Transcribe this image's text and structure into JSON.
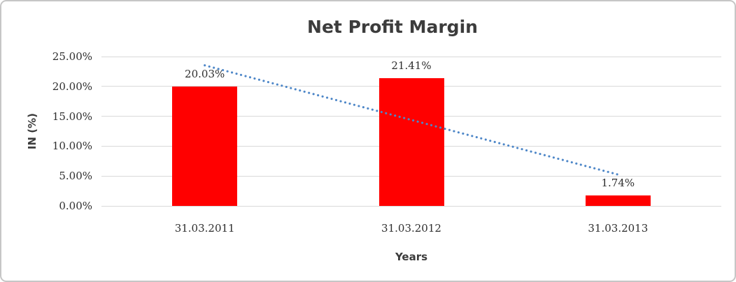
{
  "window": {
    "background_color": "#FFFFFF",
    "border_color": "#C6C6C6"
  },
  "chart_data": {
    "type": "bar",
    "title": "Net Profit Margin",
    "xlabel": "Years",
    "ylabel": "IN (%)",
    "categories": [
      "31.03.2011",
      "31.03.2012",
      "31.03.2013"
    ],
    "series": [
      {
        "name": "Net Profit Margin",
        "values": [
          20.03,
          21.41,
          1.74
        ],
        "data_labels": [
          "20.03%",
          "21.41%",
          "1.74%"
        ],
        "color": "#FF0000"
      }
    ],
    "yticks": [
      {
        "value": 0,
        "label": "0.00%"
      },
      {
        "value": 5,
        "label": "5.00%"
      },
      {
        "value": 10,
        "label": "10.00%"
      },
      {
        "value": 15,
        "label": "15.00%"
      },
      {
        "value": 20,
        "label": "20.00%"
      },
      {
        "value": 25,
        "label": "25.00%"
      }
    ],
    "ylim": [
      0,
      25
    ],
    "grid": "horizontal",
    "gridline_color": "#D9D9D9",
    "legend": "none",
    "trendline": {
      "type": "linear",
      "style": "dotted",
      "color": "#4E87C8",
      "start_value": 23.53,
      "end_value": 5.25
    }
  }
}
